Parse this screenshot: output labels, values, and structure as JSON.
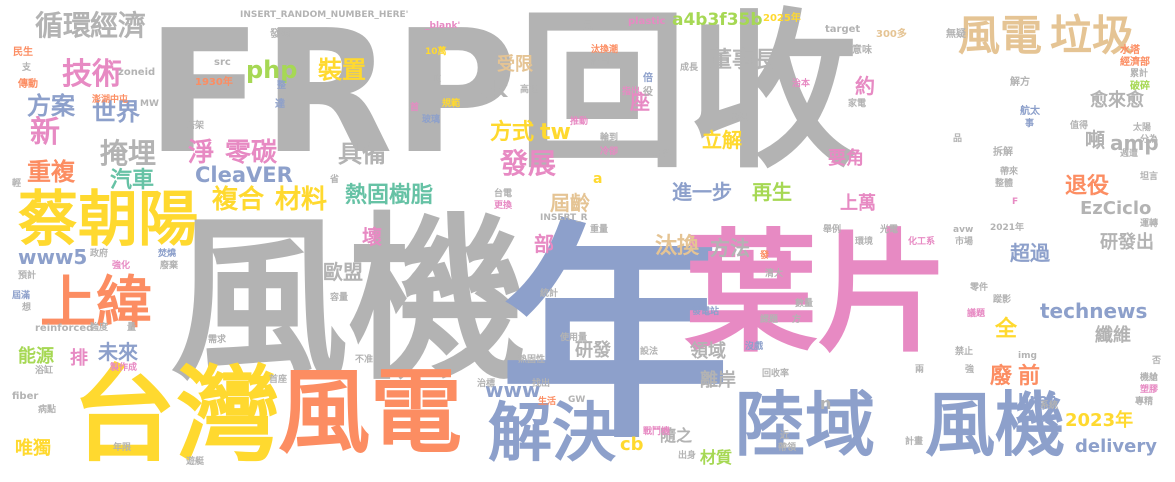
{
  "colors": {
    "tan": "#e5c494",
    "gray": "#b3b3b3",
    "blue": "#8da0cb",
    "pink": "#e78ac3",
    "orange": "#fc8d62",
    "yellow": "#ffd92f",
    "green": "#a6d854",
    "teal": "#66c2a5"
  },
  "words": [
    {
      "text": "FRP回收",
      "color": "gray"
    },
    {
      "text": "風機",
      "color": "gray"
    },
    {
      "text": "年",
      "color": "blue"
    },
    {
      "text": "葉片",
      "color": "pink"
    },
    {
      "text": "台灣",
      "color": "yellow"
    },
    {
      "text": "風電",
      "color": "orange"
    },
    {
      "text": "陸域",
      "color": "blue"
    },
    {
      "text": "風機",
      "color": "blue"
    },
    {
      "text": "解決",
      "color": "blue"
    },
    {
      "text": "蔡朝陽",
      "color": "yellow"
    },
    {
      "text": "上緯",
      "color": "orange"
    },
    {
      "text": "風電",
      "color": "tan"
    },
    {
      "text": "垃圾",
      "color": "tan"
    },
    {
      "text": "循環",
      "color": "gray"
    },
    {
      "text": "經濟",
      "color": "gray"
    },
    {
      "text": "技術",
      "color": "pink"
    },
    {
      "text": "方案",
      "color": "blue"
    },
    {
      "text": "新",
      "color": "pink"
    },
    {
      "text": "世界",
      "color": "blue"
    },
    {
      "text": "掩埋",
      "color": "gray"
    },
    {
      "text": "重複",
      "color": "orange"
    },
    {
      "text": "汽車",
      "color": "teal"
    },
    {
      "text": "裝置",
      "color": "yellow"
    },
    {
      "text": "php",
      "color": "green"
    },
    {
      "text": "淨",
      "color": "pink"
    },
    {
      "text": "零碳",
      "color": "pink"
    },
    {
      "text": "具備",
      "color": "gray"
    },
    {
      "text": "CleaVER",
      "color": "blue"
    },
    {
      "text": "複合",
      "color": "yellow"
    },
    {
      "text": "材料",
      "color": "yellow"
    },
    {
      "text": "熱固樹脂",
      "color": "teal"
    },
    {
      "text": "發展",
      "color": "pink"
    },
    {
      "text": "方式",
      "color": "yellow"
    },
    {
      "text": "tw",
      "color": "yellow"
    },
    {
      "text": "受限",
      "color": "tan"
    },
    {
      "text": "ck",
      "color": "gray"
    },
    {
      "text": "董事長",
      "color": "gray"
    },
    {
      "text": "立解",
      "color": "yellow"
    },
    {
      "text": "進一步",
      "color": "blue"
    },
    {
      "text": "再生",
      "color": "green"
    },
    {
      "text": "屆齡",
      "color": "tan"
    },
    {
      "text": "汰換",
      "color": "tan"
    },
    {
      "text": "方法",
      "color": "gray"
    },
    {
      "text": "a4b3f35b",
      "color": "green"
    },
    {
      "text": "約",
      "color": "pink"
    },
    {
      "text": "座",
      "color": "pink"
    },
    {
      "text": "要角",
      "color": "pink"
    },
    {
      "text": "愈來愈",
      "color": "gray"
    },
    {
      "text": "amp",
      "color": "gray"
    },
    {
      "text": "噸",
      "color": "gray"
    },
    {
      "text": "退役",
      "color": "orange"
    },
    {
      "text": "EzCiclo",
      "color": "gray"
    },
    {
      "text": "上萬",
      "color": "pink"
    },
    {
      "text": "超過",
      "color": "blue"
    },
    {
      "text": "研發出",
      "color": "gray"
    },
    {
      "text": "歐盟",
      "color": "gray"
    },
    {
      "text": "壞",
      "color": "pink"
    },
    {
      "text": "部",
      "color": "pink"
    },
    {
      "text": "www5",
      "color": "blue"
    },
    {
      "text": "能源",
      "color": "green"
    },
    {
      "text": "排",
      "color": "pink"
    },
    {
      "text": "未來",
      "color": "blue"
    },
    {
      "text": "technews",
      "color": "blue"
    },
    {
      "text": "纖維",
      "color": "gray"
    },
    {
      "text": "全",
      "color": "yellow"
    },
    {
      "text": "廢",
      "color": "orange"
    },
    {
      "text": "前",
      "color": "orange"
    },
    {
      "text": "href",
      "color": "blue"
    },
    {
      "text": "2023年",
      "color": "yellow"
    },
    {
      "text": "delivery",
      "color": "blue"
    },
    {
      "text": "研發",
      "color": "gray"
    },
    {
      "text": "www",
      "color": "blue"
    },
    {
      "text": "領域",
      "color": "gray"
    },
    {
      "text": "離岸",
      "color": "gray"
    },
    {
      "text": "隨之",
      "color": "gray"
    },
    {
      "text": "cb",
      "color": "yellow"
    },
    {
      "text": "材質",
      "color": "green"
    },
    {
      "text": "n",
      "color": "gray"
    },
    {
      "text": "唯獨",
      "color": "yellow"
    },
    {
      "text": "INSERT_RANDOM_NUMBER_HERE'",
      "color": "gray"
    },
    {
      "text": "_blank'",
      "color": "pink"
    },
    {
      "text": "plastic",
      "color": "pink"
    },
    {
      "text": "2025年",
      "color": "yellow"
    },
    {
      "text": "target",
      "color": "gray"
    },
    {
      "text": "見",
      "color": "gray"
    },
    {
      "text": "發明",
      "color": "gray"
    },
    {
      "text": "src",
      "color": "gray"
    },
    {
      "text": "zoneid",
      "color": "gray"
    },
    {
      "text": "MW",
      "color": "gray"
    },
    {
      "text": "1930年",
      "color": "orange"
    },
    {
      "text": "澎湖中屯",
      "color": "orange"
    },
    {
      "text": "民生",
      "color": "orange"
    },
    {
      "text": "支",
      "color": "gray"
    },
    {
      "text": "傳動",
      "color": "orange"
    },
    {
      "text": "10萬",
      "color": "yellow"
    },
    {
      "text": "底",
      "color": "gray"
    },
    {
      "text": "汰換潮",
      "color": "orange"
    },
    {
      "text": "部門",
      "color": "gray"
    },
    {
      "text": "倍",
      "color": "blue"
    },
    {
      "text": "役",
      "color": "gray"
    },
    {
      "text": "成長",
      "color": "gray"
    },
    {
      "text": "300多",
      "color": "tan"
    },
    {
      "text": "無疑",
      "color": "gray"
    },
    {
      "text": "意味",
      "color": "gray"
    },
    {
      "text": "水塔",
      "color": "orange"
    },
    {
      "text": "經濟部",
      "color": "orange"
    },
    {
      "text": "累計",
      "color": "gray"
    },
    {
      "text": "破碎",
      "color": "green"
    },
    {
      "text": "解方",
      "color": "gray"
    },
    {
      "text": "航太",
      "color": "blue"
    },
    {
      "text": "事",
      "color": "blue"
    },
    {
      "text": "值得",
      "color": "gray"
    },
    {
      "text": "太陽",
      "color": "gray"
    },
    {
      "text": "分為",
      "color": "gray"
    },
    {
      "text": "週遭",
      "color": "gray"
    },
    {
      "text": "拆解",
      "color": "gray"
    },
    {
      "text": "帶來",
      "color": "gray"
    },
    {
      "text": "整體",
      "color": "gray"
    },
    {
      "text": "坦言",
      "color": "gray"
    },
    {
      "text": "高速",
      "color": "gray"
    },
    {
      "text": "推動",
      "color": "pink"
    },
    {
      "text": "指出",
      "color": "pink"
    },
    {
      "text": "輪到",
      "color": "gray"
    },
    {
      "text": "冷卻",
      "color": "pink"
    },
    {
      "text": "研究",
      "color": "gray"
    },
    {
      "text": "治本",
      "color": "pink"
    },
    {
      "text": "家電",
      "color": "gray"
    },
    {
      "text": "歷經",
      "color": "gray"
    },
    {
      "text": "達",
      "color": "blue"
    },
    {
      "text": "首",
      "color": "pink"
    },
    {
      "text": "玻璃",
      "color": "blue"
    },
    {
      "text": "規範",
      "color": "yellow"
    },
    {
      "text": "塔架",
      "color": "gray"
    },
    {
      "text": "整",
      "color": "blue"
    },
    {
      "text": "省",
      "color": "gray"
    },
    {
      "text": "輕",
      "color": "gray"
    },
    {
      "text": "台電",
      "color": "gray"
    },
    {
      "text": "更換",
      "color": "pink"
    },
    {
      "text": "INSERT_R",
      "color": "gray"
    },
    {
      "text": "重量",
      "color": "gray"
    },
    {
      "text": "舉例",
      "color": "gray"
    },
    {
      "text": "光電",
      "color": "gray"
    },
    {
      "text": "化工系",
      "color": "pink"
    },
    {
      "text": "2021年",
      "color": "gray"
    },
    {
      "text": "avw",
      "color": "gray"
    },
    {
      "text": "市場",
      "color": "gray"
    },
    {
      "text": "運轉",
      "color": "gray"
    },
    {
      "text": "環境",
      "color": "gray"
    },
    {
      "text": "清大",
      "color": "gray"
    },
    {
      "text": "發",
      "color": "orange"
    },
    {
      "text": "政府",
      "color": "gray"
    },
    {
      "text": "強化",
      "color": "pink"
    },
    {
      "text": "焚燒",
      "color": "blue"
    },
    {
      "text": "廢棄",
      "color": "gray"
    },
    {
      "text": "預計",
      "color": "gray"
    },
    {
      "text": "容量",
      "color": "gray"
    },
    {
      "text": "統計",
      "color": "gray"
    },
    {
      "text": "發電站",
      "color": "blue"
    },
    {
      "text": "數量",
      "color": "gray"
    },
    {
      "text": "課題",
      "color": "gray"
    },
    {
      "text": "方",
      "color": "gray"
    },
    {
      "text": "零件",
      "color": "gray"
    },
    {
      "text": "蹤影",
      "color": "gray"
    },
    {
      "text": "議題",
      "color": "pink"
    },
    {
      "text": "禁止",
      "color": "gray"
    },
    {
      "text": "否",
      "color": "gray"
    },
    {
      "text": "屆滿",
      "color": "blue"
    },
    {
      "text": "想",
      "color": "gray"
    },
    {
      "text": "reinforced",
      "color": "gray"
    },
    {
      "text": "強度",
      "color": "gray"
    },
    {
      "text": "量",
      "color": "gray"
    },
    {
      "text": "需求",
      "color": "gray"
    },
    {
      "text": "不准",
      "color": "gray"
    },
    {
      "text": "熱固性",
      "color": "gray"
    },
    {
      "text": "使用量",
      "color": "gray"
    },
    {
      "text": "設法",
      "color": "gray"
    },
    {
      "text": "沒戲",
      "color": "blue"
    },
    {
      "text": "img",
      "color": "gray"
    },
    {
      "text": "浴缸",
      "color": "gray"
    },
    {
      "text": "製作成",
      "color": "pink"
    },
    {
      "text": "首座",
      "color": "gray"
    },
    {
      "text": "治標",
      "color": "gray"
    },
    {
      "text": "找出",
      "color": "gray"
    },
    {
      "text": "回收率",
      "color": "gray"
    },
    {
      "text": "兩",
      "color": "gray"
    },
    {
      "text": "強",
      "color": "gray"
    },
    {
      "text": "機艙",
      "color": "gray"
    },
    {
      "text": "塑膠",
      "color": "pink"
    },
    {
      "text": "專精",
      "color": "gray"
    },
    {
      "text": "fiber",
      "color": "gray"
    },
    {
      "text": "病點",
      "color": "gray"
    },
    {
      "text": "生活",
      "color": "orange"
    },
    {
      "text": "GW",
      "color": "gray"
    },
    {
      "text": "戰鬥機",
      "color": "pink"
    },
    {
      "text": "近",
      "color": "gray"
    },
    {
      "text": "帶領",
      "color": "gray"
    },
    {
      "text": "出身",
      "color": "gray"
    },
    {
      "text": "系統",
      "color": "gray"
    },
    {
      "text": "計畫",
      "color": "gray"
    },
    {
      "text": "年限",
      "color": "gray"
    },
    {
      "text": "遊艇",
      "color": "gray"
    },
    {
      "text": "a",
      "color": "yellow"
    },
    {
      "text": "品",
      "color": "gray"
    },
    {
      "text": "F",
      "color": "pink"
    }
  ]
}
